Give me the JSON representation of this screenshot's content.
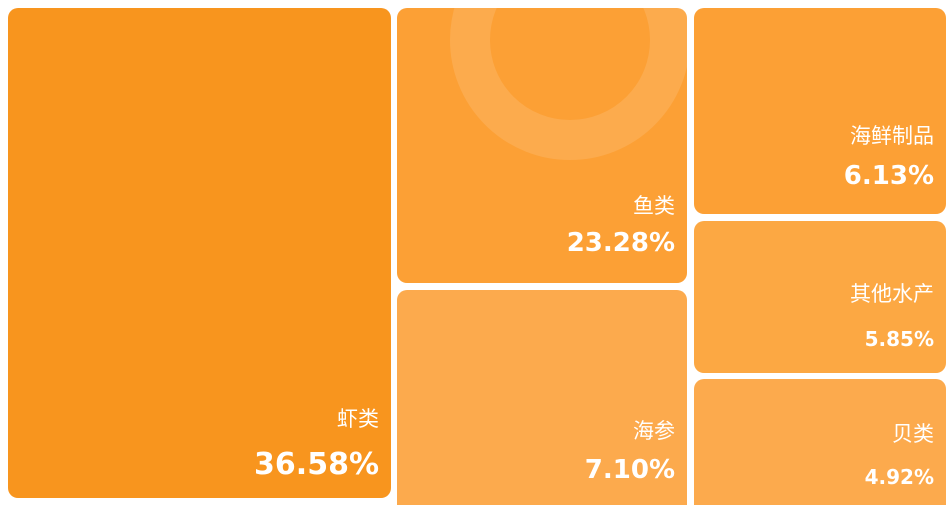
{
  "chart_data": {
    "type": "treemap",
    "categories": [
      "虾类",
      "鱼类",
      "海参",
      "海鲜制品",
      "其他水产",
      "贝类"
    ],
    "values": [
      36.58,
      23.28,
      7.1,
      6.13,
      5.85,
      4.92
    ],
    "value_labels": [
      "36.58%",
      "23.28%",
      "7.10%",
      "6.13%",
      "5.85%",
      "4.92%"
    ],
    "colors": [
      "#f8951e",
      "#fca035",
      "#fcaa4d",
      "#fca035",
      "#fca843",
      "#fcaa4d"
    ]
  }
}
